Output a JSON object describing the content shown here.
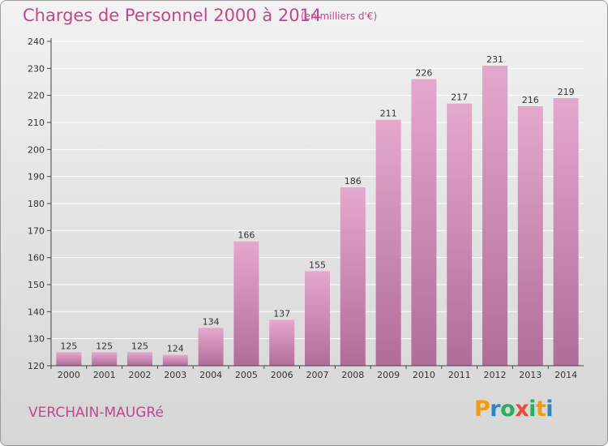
{
  "header": {
    "title": "Charges de Personnel 2000 à 2014",
    "subtitle": "(en milliers d'€)"
  },
  "footer": {
    "town": "VERCHAIN-MAUGRé",
    "logo": {
      "letters": [
        "P",
        "r",
        "o",
        "x",
        "i",
        "t",
        "i"
      ],
      "colors": [
        "#f39c12",
        "#2e86c1",
        "#27ae60",
        "#e74c3c",
        "#27ae60",
        "#f39c12",
        "#2e86c1"
      ]
    }
  },
  "chart_data": {
    "type": "bar",
    "categories": [
      "2000",
      "2001",
      "2002",
      "2003",
      "2004",
      "2005",
      "2006",
      "2007",
      "2008",
      "2009",
      "2010",
      "2011",
      "2012",
      "2013",
      "2014"
    ],
    "values": [
      125,
      125,
      125,
      124,
      134,
      166,
      137,
      155,
      186,
      211,
      226,
      217,
      231,
      216,
      219
    ],
    "data_labels": [
      "125",
      "125",
      "125",
      "124",
      "134",
      "166",
      "137",
      "155",
      "186",
      "211",
      "226",
      "217",
      "231",
      "216",
      "219"
    ],
    "yticks": [
      120,
      130,
      140,
      150,
      160,
      170,
      180,
      190,
      200,
      210,
      220,
      230,
      240
    ],
    "ylim": [
      120,
      240
    ],
    "grid": true,
    "colors": {
      "bar_top": "#e5a8cd",
      "bar_bottom": "#b06d98",
      "grid": "#ffffff",
      "axis": "#444444",
      "text": "#333333"
    }
  }
}
